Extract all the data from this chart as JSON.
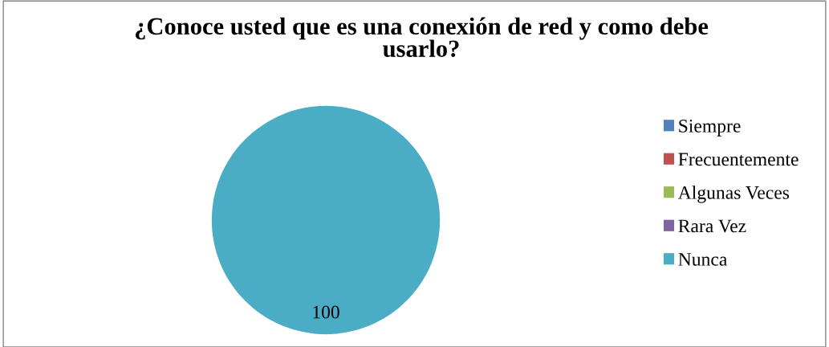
{
  "chart_data": {
    "type": "pie",
    "title": "¿Conoce usted que es una conexión de red y como debe usarlo?",
    "categories": [
      "Siempre",
      "Frecuentemente",
      "Algunas Veces",
      "Rara Vez",
      "Nunca"
    ],
    "values": [
      0,
      0,
      0,
      0,
      100
    ],
    "colors": [
      "#4f81bd",
      "#c0504d",
      "#9bbb59",
      "#8064a2",
      "#4bacc6"
    ],
    "value_labels": [
      null,
      null,
      null,
      null,
      "100"
    ],
    "legend": "right"
  }
}
